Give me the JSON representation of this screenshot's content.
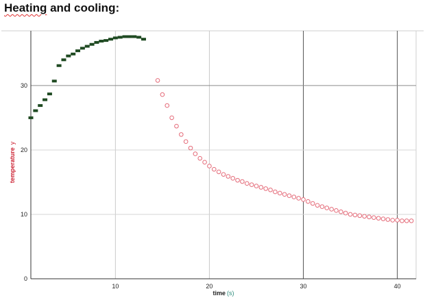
{
  "heading": {
    "word1": "Heating",
    "rest": " and cooling:"
  },
  "chart_data": {
    "type": "scatter",
    "title": "",
    "xlabel": "time",
    "xunit": "(s)",
    "ylabel": "temperature",
    "ylabel_suffix": "y",
    "xlim": [
      1,
      42
    ],
    "ylim": [
      0,
      38.5
    ],
    "xticks": [
      10,
      20,
      30,
      40
    ],
    "yticks": [
      0,
      10,
      20,
      30
    ],
    "grid": true,
    "legend": "none",
    "colors": {
      "heating": "#1f4a22",
      "cooling": "#e46a78",
      "ylabel": "#cc2233",
      "xlabel": "#222222",
      "xunit": "#2a8a7a",
      "grid_light": "#c8c8c8",
      "grid_dark": "#555555"
    },
    "series": [
      {
        "marker": "filled-dash",
        "x": [
          1,
          1.5,
          2,
          2.5,
          3,
          3.5,
          4,
          4.5,
          5,
          5.5,
          6,
          6.5,
          7,
          7.5,
          8,
          8.5,
          9,
          9.5,
          10,
          10.5,
          11,
          11.5,
          12,
          12.5,
          13
        ],
        "y": [
          25.0,
          26.1,
          26.9,
          27.8,
          28.7,
          30.7,
          33.1,
          34.0,
          34.6,
          34.9,
          35.4,
          35.8,
          36.1,
          36.4,
          36.7,
          36.9,
          37.0,
          37.2,
          37.4,
          37.5,
          37.6,
          37.6,
          37.6,
          37.5,
          37.2
        ]
      },
      {
        "marker": "hollow-circle",
        "x": [
          14.5,
          15,
          15.5,
          16,
          16.5,
          17,
          17.5,
          18,
          18.5,
          19,
          19.5,
          20,
          20.5,
          21,
          21.5,
          22,
          22.5,
          23,
          23.5,
          24,
          24.5,
          25,
          25.5,
          26,
          26.5,
          27,
          27.5,
          28,
          28.5,
          29,
          29.5,
          30,
          30.5,
          31,
          31.5,
          32,
          32.5,
          33,
          33.5,
          34,
          34.5,
          35,
          35.5,
          36,
          36.5,
          37,
          37.5,
          38,
          38.5,
          39,
          39.5,
          40,
          40.5,
          41,
          41.5
        ],
        "y": [
          30.8,
          28.6,
          26.9,
          25.0,
          23.7,
          22.4,
          21.3,
          20.3,
          19.4,
          18.7,
          18.1,
          17.5,
          17.0,
          16.6,
          16.2,
          15.9,
          15.6,
          15.3,
          15.1,
          14.8,
          14.6,
          14.4,
          14.2,
          14.0,
          13.8,
          13.5,
          13.3,
          13.1,
          12.9,
          12.7,
          12.5,
          12.3,
          12.0,
          11.7,
          11.4,
          11.2,
          11.0,
          10.8,
          10.6,
          10.4,
          10.2,
          10.0,
          9.9,
          9.8,
          9.7,
          9.6,
          9.5,
          9.4,
          9.3,
          9.2,
          9.1,
          9.1,
          9.0,
          9.0,
          9.0
        ]
      }
    ]
  }
}
